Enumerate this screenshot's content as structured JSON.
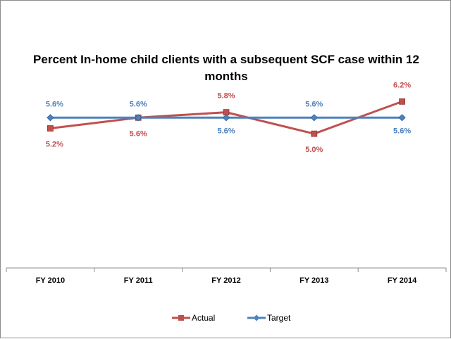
{
  "chart_data": {
    "type": "line",
    "title": "Percent In-home child clients with a subsequent SCF case within 12 months",
    "categories": [
      "FY 2010",
      "FY 2011",
      "FY 2012",
      "FY 2013",
      "FY 2014"
    ],
    "series": [
      {
        "name": "Actual",
        "color": "#c0504d",
        "marker": "square",
        "values": [
          5.2,
          5.6,
          5.8,
          5.0,
          6.2
        ],
        "labels": [
          "5.2%",
          "5.6%",
          "5.8%",
          "5.0%",
          "6.2%"
        ]
      },
      {
        "name": "Target",
        "color": "#4f81bd",
        "marker": "diamond",
        "values": [
          5.6,
          5.6,
          5.6,
          5.6,
          5.6
        ],
        "labels": [
          "5.6%",
          "5.6%",
          "5.6%",
          "5.6%",
          "5.6%"
        ]
      }
    ],
    "xlabel": "",
    "ylabel": "",
    "ylim": [
      0,
      7.1
    ],
    "grid": false,
    "legend": "bottom"
  }
}
